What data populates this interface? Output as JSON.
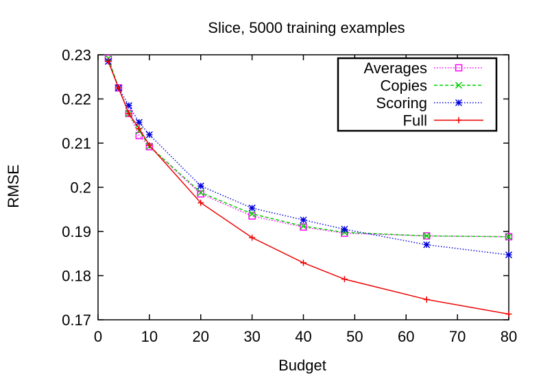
{
  "chart_data": {
    "type": "line",
    "title": "Slice, 5000 training examples",
    "xlabel": "Budget",
    "ylabel": "RMSE",
    "xlim": [
      0,
      80
    ],
    "ylim": [
      0.17,
      0.23
    ],
    "xticks": [
      0,
      10,
      20,
      30,
      40,
      50,
      60,
      70,
      80
    ],
    "yticks": [
      0.17,
      0.18,
      0.19,
      0.2,
      0.21,
      0.22,
      0.23
    ],
    "ytick_labels": [
      "0.17",
      "0.18",
      "0.19",
      "0.2",
      "0.21",
      "0.22",
      "0.23"
    ],
    "grid": false,
    "legend_position": "top-right",
    "series": [
      {
        "name": "Averages",
        "color": "#ff00ff",
        "dash": "dotted",
        "marker": "open-square",
        "x": [
          2,
          4,
          6,
          8,
          10,
          20,
          30,
          40,
          48,
          64,
          80
        ],
        "y": [
          0.2292,
          0.2225,
          0.2167,
          0.2117,
          0.2092,
          0.1985,
          0.1935,
          0.191,
          0.1896,
          0.189,
          0.1888
        ]
      },
      {
        "name": "Copies",
        "color": "#00cc00",
        "dash": "dashed",
        "marker": "x",
        "x": [
          2,
          4,
          6,
          8,
          10,
          20,
          30,
          40,
          48,
          64,
          80
        ],
        "y": [
          0.2292,
          0.2225,
          0.2167,
          0.2128,
          0.2093,
          0.1988,
          0.194,
          0.1912,
          0.1898,
          0.189,
          0.1888
        ]
      },
      {
        "name": "Scoring",
        "color": "#0000dd",
        "dash": "dotted",
        "marker": "star",
        "x": [
          2,
          4,
          6,
          8,
          10,
          20,
          30,
          40,
          48,
          64,
          80
        ],
        "y": [
          0.2285,
          0.2225,
          0.2185,
          0.2147,
          0.2119,
          0.2003,
          0.1953,
          0.1926,
          0.1905,
          0.187,
          0.1847
        ]
      },
      {
        "name": "Full",
        "color": "#ee0000",
        "dash": "solid",
        "marker": "plus",
        "x": [
          2,
          4,
          6,
          8,
          10,
          20,
          30,
          40,
          48,
          64,
          80
        ],
        "y": [
          0.2285,
          0.2225,
          0.2167,
          0.2133,
          0.2095,
          0.1965,
          0.1886,
          0.1829,
          0.1792,
          0.1746,
          0.1713
        ]
      }
    ]
  }
}
